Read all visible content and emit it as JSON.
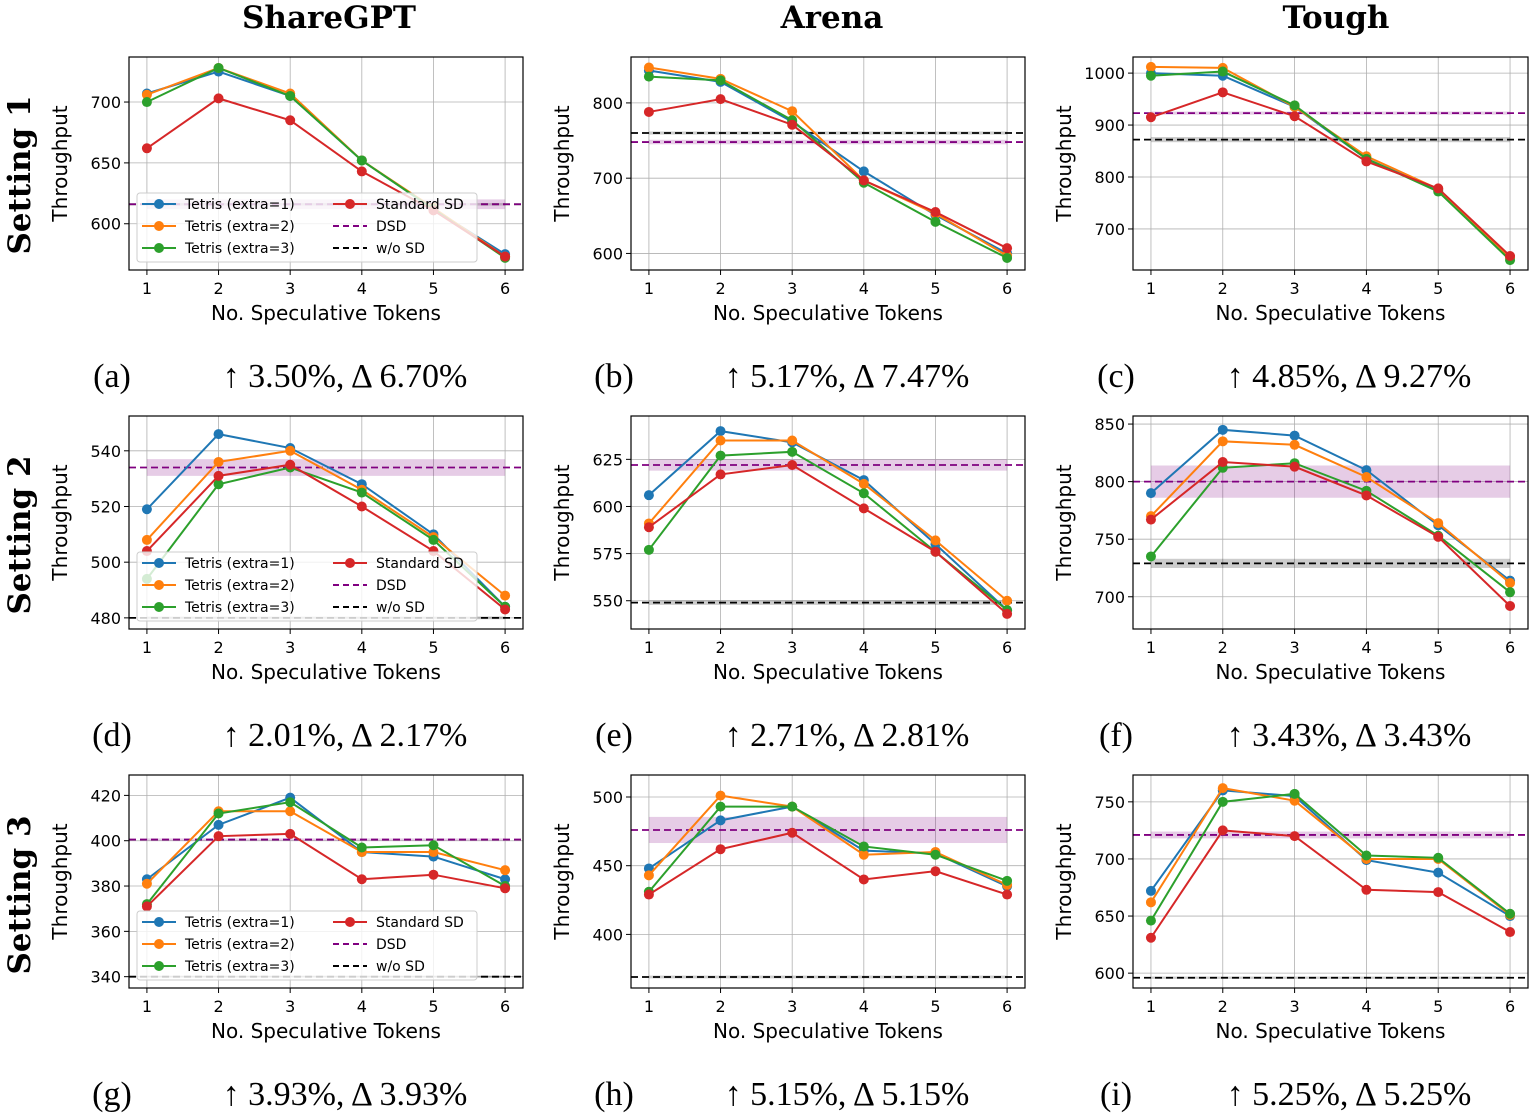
{
  "chart_data": {
    "type": "line",
    "column_titles": [
      "ShareGPT",
      "Arena",
      "Tough"
    ],
    "row_labels": [
      "Setting 1",
      "Setting 2",
      "Setting 3"
    ],
    "xlabel": "No. Speculative Tokens",
    "ylabel": "Throughput",
    "x": [
      1,
      2,
      3,
      4,
      5,
      6
    ],
    "xticks": [
      "1",
      "2",
      "3",
      "4",
      "5",
      "6"
    ],
    "grid": true,
    "legend": {
      "placement": "lower-left",
      "shown_in": [
        "a",
        "d",
        "g"
      ],
      "entries": [
        "Tetris (extra=1)",
        "Tetris (extra=2)",
        "Tetris (extra=3)",
        "Standard SD",
        "DSD",
        "w/o SD"
      ]
    },
    "colors": {
      "Tetris (extra=1)": "#1f77b4",
      "Tetris (extra=2)": "#ff7f0e",
      "Tetris (extra=3)": "#2ca02c",
      "Standard SD": "#d62728",
      "DSD": "#800080",
      "w/o SD": "#000000"
    },
    "panels": [
      {
        "id": "a",
        "caption_label": "(a)",
        "caption": "↑ 3.50%, Δ 6.70%",
        "ylim": [
          562,
          737
        ],
        "yticks": [
          600,
          650,
          700
        ],
        "series": [
          {
            "name": "Tetris (extra=1)",
            "values": [
              707,
              725,
              705,
              652,
              612,
              575
            ]
          },
          {
            "name": "Tetris (extra=2)",
            "values": [
              706,
              728,
              707,
              652,
              613,
              573
            ]
          },
          {
            "name": "Tetris (extra=3)",
            "values": [
              700,
              728,
              705,
              652,
              612,
              572
            ]
          },
          {
            "name": "Standard SD",
            "values": [
              662,
              703,
              685,
              643,
              611,
              573
            ]
          }
        ],
        "dsd": 616,
        "dsd_band": 4,
        "wo_sd": 616,
        "wo_sd_band": 1
      },
      {
        "id": "b",
        "caption_label": "(b)",
        "caption": "↑ 5.17%, Δ 7.47%",
        "ylim": [
          578,
          861
        ],
        "yticks": [
          600,
          700,
          800
        ],
        "series": [
          {
            "name": "Tetris (extra=1)",
            "values": [
              843,
              828,
              775,
              709,
              651,
              600
            ]
          },
          {
            "name": "Tetris (extra=2)",
            "values": [
              847,
              832,
              789,
              697,
              653,
              597
            ]
          },
          {
            "name": "Tetris (extra=3)",
            "values": [
              835,
              830,
              777,
              694,
              642,
              594
            ]
          },
          {
            "name": "Standard SD",
            "values": [
              788,
              805,
              771,
              697,
              655,
              607
            ]
          }
        ],
        "dsd": 748,
        "dsd_band": 3,
        "wo_sd": 760,
        "wo_sd_band": 2
      },
      {
        "id": "c",
        "caption_label": "(c)",
        "caption": "↑ 4.85%, Δ 9.27%",
        "ylim": [
          621,
          1031
        ],
        "yticks": [
          700,
          800,
          900,
          1000
        ],
        "series": [
          {
            "name": "Tetris (extra=1)",
            "values": [
              1000,
              995,
              935,
              835,
              775,
              645
            ]
          },
          {
            "name": "Tetris (extra=2)",
            "values": [
              1012,
              1010,
              935,
              840,
              777,
              645
            ]
          },
          {
            "name": "Tetris (extra=3)",
            "values": [
              995,
              1003,
              938,
              835,
              772,
              640
            ]
          },
          {
            "name": "Standard SD",
            "values": [
              915,
              963,
              917,
              830,
              778,
              648
            ]
          }
        ],
        "dsd": 923,
        "dsd_band": 3,
        "wo_sd": 872,
        "wo_sd_band": 5
      },
      {
        "id": "d",
        "caption_label": "(d)",
        "caption": "↑ 2.01%, Δ 2.17%",
        "ylim": [
          476,
          552.5
        ],
        "yticks": [
          480,
          500,
          520,
          540
        ],
        "series": [
          {
            "name": "Tetris (extra=1)",
            "values": [
              519,
              546,
              541,
              528,
              510,
              484
            ]
          },
          {
            "name": "Tetris (extra=2)",
            "values": [
              508,
              536,
              540,
              526,
              509,
              488
            ]
          },
          {
            "name": "Tetris (extra=3)",
            "values": [
              494,
              528,
              534,
              525,
              508,
              484
            ]
          },
          {
            "name": "Standard SD",
            "values": [
              504,
              531,
              535,
              520,
              504,
              483
            ]
          }
        ],
        "dsd": 534,
        "dsd_band": 3,
        "wo_sd": 480,
        "wo_sd_band": 0.5
      },
      {
        "id": "e",
        "caption_label": "(e)",
        "caption": "↑ 2.71%, Δ 2.81%",
        "ylim": [
          535,
          648
        ],
        "yticks": [
          550,
          575,
          600,
          625
        ],
        "series": [
          {
            "name": "Tetris (extra=1)",
            "values": [
              606,
              640,
              634,
              614,
              580,
              545
            ]
          },
          {
            "name": "Tetris (extra=2)",
            "values": [
              591,
              635,
              635,
              612,
              582,
              550
            ]
          },
          {
            "name": "Tetris (extra=3)",
            "values": [
              577,
              627,
              629,
              607,
              576,
              545
            ]
          },
          {
            "name": "Standard SD",
            "values": [
              589,
              617,
              622,
              599,
              576,
              543
            ]
          }
        ],
        "dsd": 622,
        "dsd_band": 3,
        "wo_sd": 549,
        "wo_sd_band": 1.2
      },
      {
        "id": "f",
        "caption_label": "(f)",
        "caption": "↑ 3.43%, Δ 3.43%",
        "ylim": [
          672,
          857
        ],
        "yticks": [
          700,
          750,
          800,
          850
        ],
        "series": [
          {
            "name": "Tetris (extra=1)",
            "values": [
              790,
              845,
              840,
              810,
              762,
              714
            ]
          },
          {
            "name": "Tetris (extra=2)",
            "values": [
              770,
              835,
              832,
              804,
              764,
              712
            ]
          },
          {
            "name": "Tetris (extra=3)",
            "values": [
              735,
              812,
              816,
              792,
              753,
              704
            ]
          },
          {
            "name": "Standard SD",
            "values": [
              767,
              817,
              813,
              788,
              752,
              692
            ]
          }
        ],
        "dsd": 800,
        "dsd_band": 14,
        "wo_sd": 729,
        "wo_sd_band": 4
      },
      {
        "id": "g",
        "caption_label": "(g)",
        "caption": "↑ 3.93%, Δ 3.93%",
        "ylim": [
          335,
          429
        ],
        "yticks": [
          340,
          360,
          380,
          400,
          420
        ],
        "series": [
          {
            "name": "Tetris (extra=1)",
            "values": [
              383,
              407,
              419,
              395,
              393,
              383
            ]
          },
          {
            "name": "Tetris (extra=2)",
            "values": [
              381,
              413,
              413,
              395,
              395,
              387
            ]
          },
          {
            "name": "Tetris (extra=3)",
            "values": [
              372,
              412,
              417,
              397,
              398,
              380
            ]
          },
          {
            "name": "Standard SD",
            "values": [
              371,
              402,
              403,
              383,
              385,
              379
            ]
          }
        ],
        "dsd": 400.5,
        "dsd_band": 0.5,
        "wo_sd": 340,
        "wo_sd_band": 0.5
      },
      {
        "id": "h",
        "caption_label": "(h)",
        "caption": "↑ 5.15%, Δ 5.15%",
        "ylim": [
          361,
          516
        ],
        "yticks": [
          400,
          450,
          500
        ],
        "series": [
          {
            "name": "Tetris (extra=1)",
            "values": [
              448,
              483,
              493,
              461,
              459,
              435
            ]
          },
          {
            "name": "Tetris (extra=2)",
            "values": [
              443,
              501,
              493,
              458,
              460,
              436
            ]
          },
          {
            "name": "Tetris (extra=3)",
            "values": [
              431,
              493,
              493,
              464,
              458,
              439
            ]
          },
          {
            "name": "Standard SD",
            "values": [
              429,
              462,
              474,
              440,
              446,
              429
            ]
          }
        ],
        "dsd": 476,
        "dsd_band": 9.5,
        "wo_sd": 369,
        "wo_sd_band": 1
      },
      {
        "id": "i",
        "caption_label": "(i)",
        "caption": "↑ 5.25%, Δ 5.25%",
        "ylim": [
          587,
          773.5
        ],
        "yticks": [
          600,
          650,
          700,
          750
        ],
        "series": [
          {
            "name": "Tetris (extra=1)",
            "values": [
              672,
              760,
              755,
              699,
              688,
              650
            ]
          },
          {
            "name": "Tetris (extra=2)",
            "values": [
              662,
              762,
              751,
              700,
              700,
              651
            ]
          },
          {
            "name": "Tetris (extra=3)",
            "values": [
              646,
              750,
              757,
              703,
              701,
              652
            ]
          },
          {
            "name": "Standard SD",
            "values": [
              631,
              725,
              720,
              673,
              671,
              636
            ]
          }
        ],
        "dsd": 721,
        "dsd_band": 3,
        "wo_sd": 596,
        "wo_sd_band": 1
      }
    ]
  }
}
